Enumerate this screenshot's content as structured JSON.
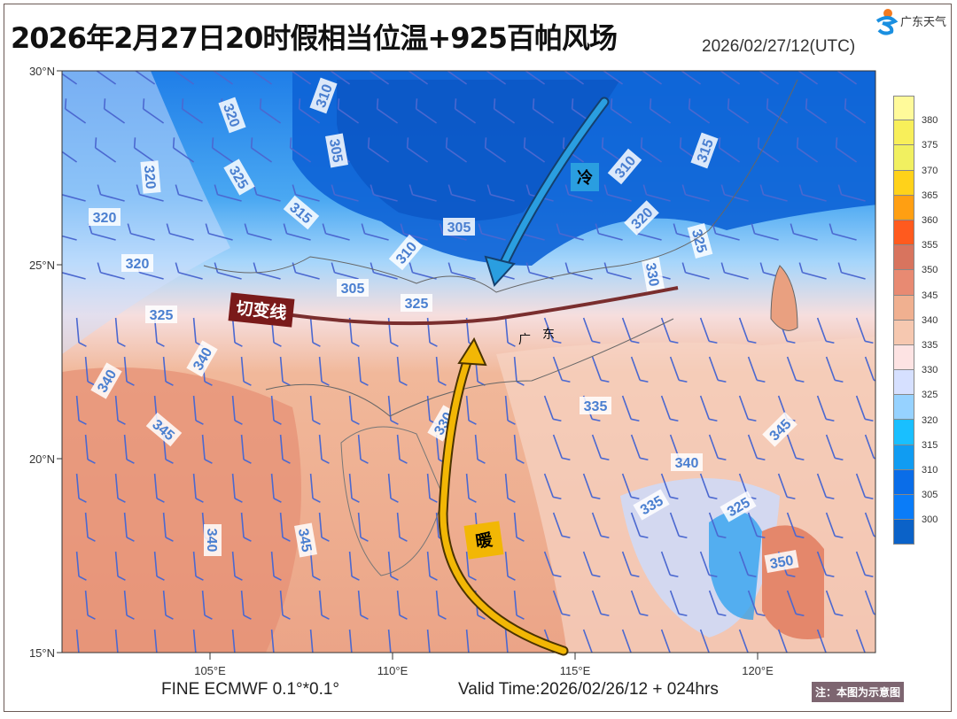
{
  "header": {
    "title": "2026年2月27日20时假相当位温+925百帕风场",
    "init_time": "2026/02/27/12(UTC)",
    "logo_text": "广东天气"
  },
  "axes": {
    "lat_labels": [
      "30°N",
      "25°N",
      "20°N",
      "15°N"
    ],
    "lat_values": [
      30,
      25,
      20,
      15
    ],
    "lon_labels": [
      "105°E",
      "110°E",
      "115°E",
      "120°E"
    ],
    "lon_values": [
      105,
      110,
      115,
      120
    ]
  },
  "colorbar": {
    "ticks": [
      "380",
      "375",
      "370",
      "365",
      "360",
      "355",
      "350",
      "345",
      "340",
      "335",
      "330",
      "325",
      "320",
      "315",
      "310",
      "305",
      "300"
    ],
    "colors": [
      "#fffa9a",
      "#f8ef5a",
      "#f1f060",
      "#ffd21a",
      "#ff9f12",
      "#ff5a1e",
      "#d8745e",
      "#e88a72",
      "#f0b090",
      "#f6c8b0",
      "#fde3e3",
      "#d6e0ff",
      "#96d2ff",
      "#19bfff",
      "#109cf2",
      "#0a6de8",
      "#0a7cf8",
      "#0b62c8"
    ]
  },
  "contour_labels": [
    "310",
    "305",
    "320",
    "320",
    "305",
    "325",
    "315",
    "320",
    "305",
    "310",
    "310",
    "315",
    "320",
    "325",
    "330",
    "320",
    "325",
    "325",
    "340",
    "345",
    "330",
    "335",
    "340",
    "325",
    "345",
    "340",
    "350",
    "345",
    "340",
    "335"
  ],
  "annotations": {
    "shear_line": "切变线",
    "cold": "冷",
    "warm": "暖",
    "province": [
      "广",
      "东"
    ]
  },
  "arrow_colors": {
    "cold": "#2a9ee0",
    "warm": "#f2b705",
    "shear": "#7a2e2e"
  },
  "footer": {
    "model": "FINE ECMWF 0.1°*0.1°",
    "valid_time": "Valid Time:2026/02/26/12 + 024hrs",
    "note": "注：本图为示意图"
  }
}
